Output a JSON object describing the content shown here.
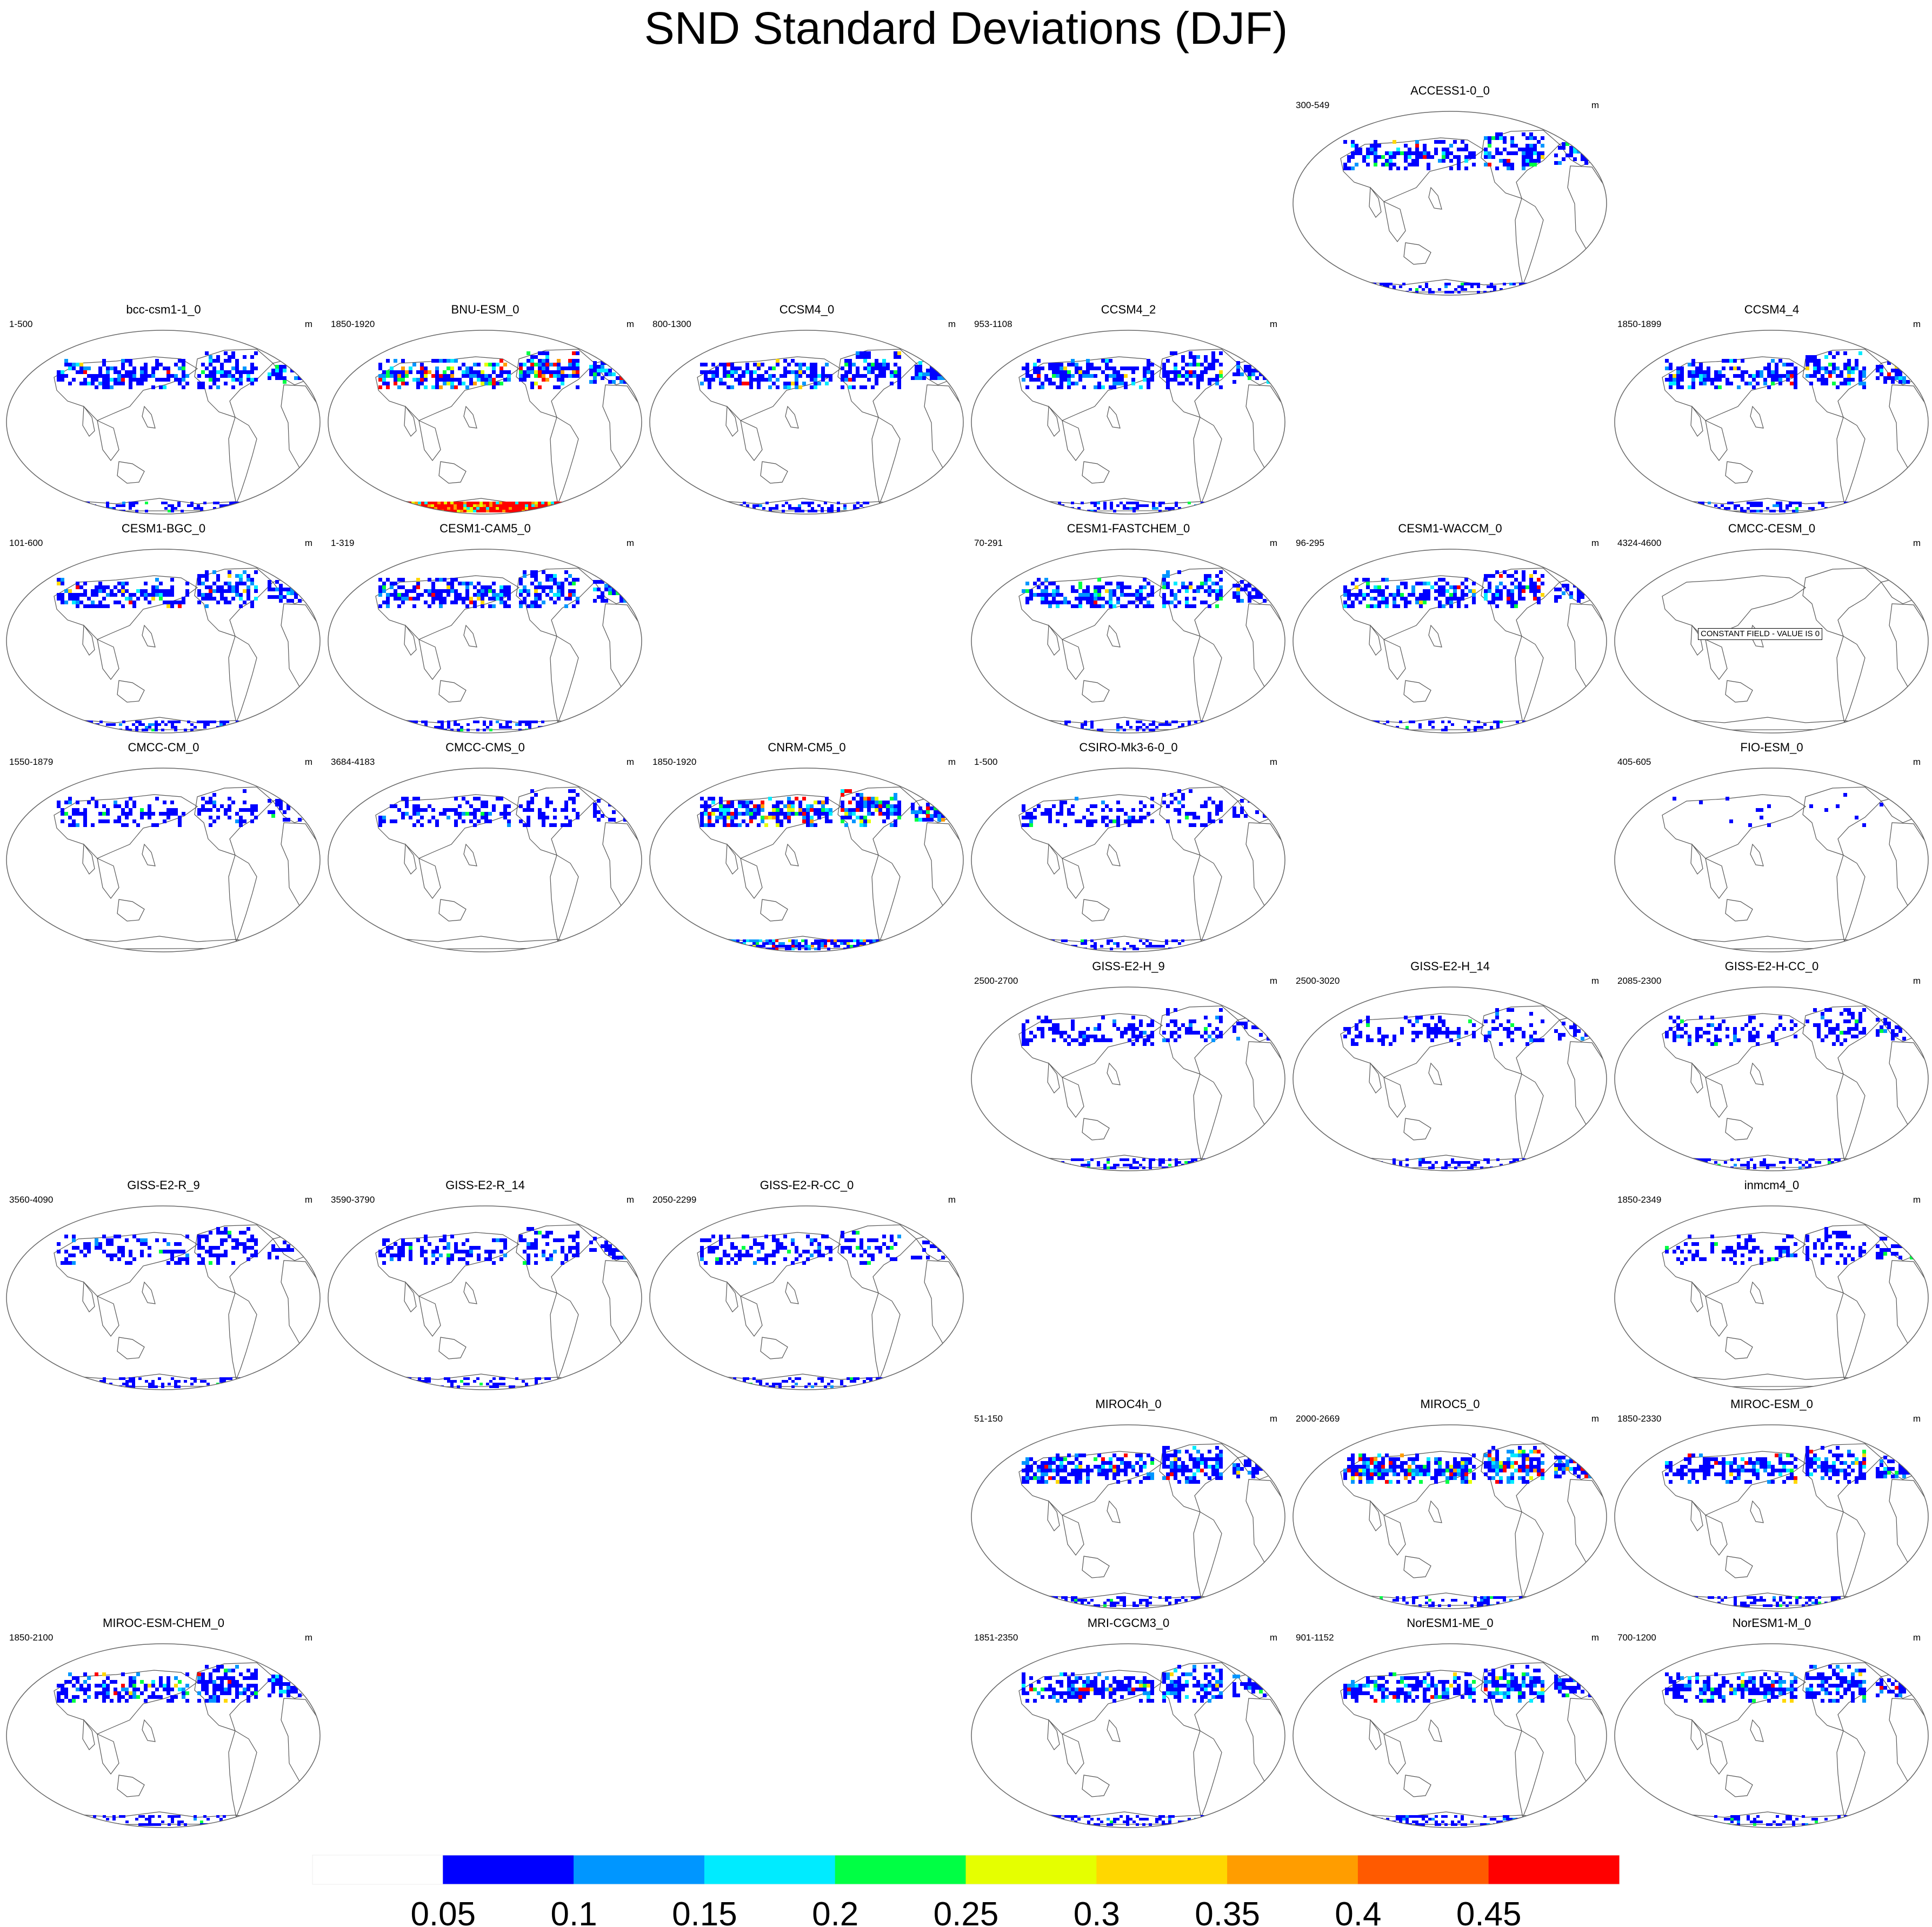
{
  "title": "SND Standard Deviations (DJF)",
  "units": "m",
  "colors": {
    "coastline": "#555555",
    "frame": "#666666"
  },
  "colorbar": {
    "labels": [
      "0.05",
      "0.1",
      "0.15",
      "0.2",
      "0.25",
      "0.3",
      "0.35",
      "0.4",
      "0.45"
    ],
    "colors": [
      "#ffffff",
      "#0000ff",
      "#0096ff",
      "#00ebff",
      "#00ff44",
      "#e5ff00",
      "#ffd700",
      "#ff9d00",
      "#ff5a00",
      "#ff0000"
    ]
  },
  "panels": [
    {
      "title": "ACCESS1-0_0",
      "range": "300-549",
      "row": 0,
      "col": 4,
      "snow": "moderate",
      "antarctic": "sparse"
    },
    {
      "title": "bcc-csm1-1_0",
      "range": "1-500",
      "row": 1,
      "col": 0,
      "snow": "moderate",
      "antarctic": "sparse"
    },
    {
      "title": "BNU-ESM_0",
      "range": "1850-1920",
      "row": 1,
      "col": 1,
      "snow": "high",
      "antarctic": "red"
    },
    {
      "title": "CCSM4_0",
      "range": "800-1300",
      "row": 1,
      "col": 2,
      "snow": "moderate",
      "antarctic": "sparse"
    },
    {
      "title": "CCSM4_2",
      "range": "953-1108",
      "row": 1,
      "col": 3,
      "snow": "moderate",
      "antarctic": "sparse"
    },
    {
      "title": "CCSM4_4",
      "range": "1850-1899",
      "row": 1,
      "col": 5,
      "snow": "moderate",
      "antarctic": "sparse"
    },
    {
      "title": "CESM1-BGC_0",
      "range": "101-600",
      "row": 2,
      "col": 0,
      "snow": "moderate",
      "antarctic": "sparse"
    },
    {
      "title": "CESM1-CAM5_0",
      "range": "1-319",
      "row": 2,
      "col": 1,
      "snow": "moderate",
      "antarctic": "sparse"
    },
    {
      "title": "CESM1-FASTCHEM_0",
      "range": "70-291",
      "row": 2,
      "col": 3,
      "snow": "moderate",
      "antarctic": "sparse"
    },
    {
      "title": "CESM1-WACCM_0",
      "range": "96-295",
      "row": 2,
      "col": 4,
      "snow": "moderate",
      "antarctic": "sparse"
    },
    {
      "title": "CMCC-CESM_0",
      "range": "4324-4600",
      "row": 2,
      "col": 5,
      "snow": "none",
      "antarctic": "none",
      "note": "CONSTANT FIELD - VALUE IS 0"
    },
    {
      "title": "CMCC-CM_0",
      "range": "1550-1879",
      "row": 3,
      "col": 0,
      "snow": "light",
      "antarctic": "none"
    },
    {
      "title": "CMCC-CMS_0",
      "range": "3684-4183",
      "row": 3,
      "col": 1,
      "snow": "light",
      "antarctic": "none"
    },
    {
      "title": "CNRM-CM5_0",
      "range": "1850-1920",
      "row": 3,
      "col": 2,
      "snow": "high",
      "antarctic": "moderate"
    },
    {
      "title": "CSIRO-Mk3-6-0_0",
      "range": "1-500",
      "row": 3,
      "col": 3,
      "snow": "light",
      "antarctic": "sparse"
    },
    {
      "title": "FIO-ESM_0",
      "range": "405-605",
      "row": 3,
      "col": 5,
      "snow": "veryLight",
      "antarctic": "none"
    },
    {
      "title": "GISS-E2-H_9",
      "range": "2500-2700",
      "row": 4,
      "col": 3,
      "snow": "light",
      "antarctic": "sparse"
    },
    {
      "title": "GISS-E2-H_14",
      "range": "2500-3020",
      "row": 4,
      "col": 4,
      "snow": "light",
      "antarctic": "sparse"
    },
    {
      "title": "GISS-E2-H-CC_0",
      "range": "2085-2300",
      "row": 4,
      "col": 5,
      "snow": "light",
      "antarctic": "sparse"
    },
    {
      "title": "GISS-E2-R_9",
      "range": "3560-4090",
      "row": 5,
      "col": 0,
      "snow": "light",
      "antarctic": "sparse"
    },
    {
      "title": "GISS-E2-R_14",
      "range": "3590-3790",
      "row": 5,
      "col": 1,
      "snow": "light",
      "antarctic": "sparse"
    },
    {
      "title": "GISS-E2-R-CC_0",
      "range": "2050-2299",
      "row": 5,
      "col": 2,
      "snow": "light",
      "antarctic": "sparse"
    },
    {
      "title": "inmcm4_0",
      "range": "1850-2349",
      "row": 5,
      "col": 5,
      "snow": "light",
      "antarctic": "none"
    },
    {
      "title": "MIROC4h_0",
      "range": "51-150",
      "row": 6,
      "col": 3,
      "snow": "moderate",
      "antarctic": "sparse"
    },
    {
      "title": "MIROC5_0",
      "range": "2000-2669",
      "row": 6,
      "col": 4,
      "snow": "high",
      "antarctic": "sparse"
    },
    {
      "title": "MIROC-ESM_0",
      "range": "1850-2330",
      "row": 6,
      "col": 5,
      "snow": "moderate",
      "antarctic": "sparse"
    },
    {
      "title": "MIROC-ESM-CHEM_0",
      "range": "1850-2100",
      "row": 7,
      "col": 0,
      "snow": "moderate",
      "antarctic": "sparse"
    },
    {
      "title": "MRI-CGCM3_0",
      "range": "1851-2350",
      "row": 7,
      "col": 3,
      "snow": "moderate",
      "antarctic": "sparse"
    },
    {
      "title": "NorESM1-ME_0",
      "range": "901-1152",
      "row": 7,
      "col": 4,
      "snow": "moderate",
      "antarctic": "sparse"
    },
    {
      "title": "NorESM1-M_0",
      "range": "700-1200",
      "row": 7,
      "col": 5,
      "snow": "moderate",
      "antarctic": "sparse"
    }
  ]
}
